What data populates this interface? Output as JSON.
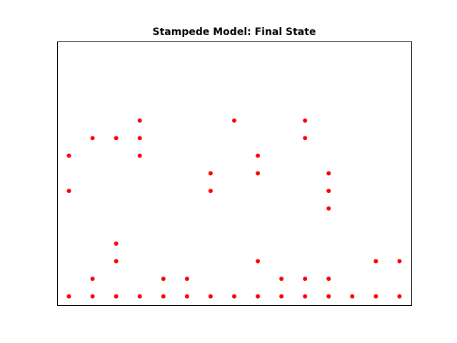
{
  "chart_data": {
    "type": "scatter",
    "title": "Stampede Model: Final State",
    "xlabel": "",
    "ylabel": "",
    "xlim": [
      -0.5,
      14.5
    ],
    "ylim": [
      -0.5,
      14.5
    ],
    "axes_visible": false,
    "grid": false,
    "marker_color": "#ff0000",
    "points": [
      {
        "x": 0,
        "y": 0
      },
      {
        "x": 1,
        "y": 0
      },
      {
        "x": 2,
        "y": 0
      },
      {
        "x": 3,
        "y": 0
      },
      {
        "x": 4,
        "y": 0
      },
      {
        "x": 5,
        "y": 0
      },
      {
        "x": 6,
        "y": 0
      },
      {
        "x": 7,
        "y": 0
      },
      {
        "x": 8,
        "y": 0
      },
      {
        "x": 9,
        "y": 0
      },
      {
        "x": 10,
        "y": 0
      },
      {
        "x": 11,
        "y": 0
      },
      {
        "x": 12,
        "y": 0
      },
      {
        "x": 13,
        "y": 0
      },
      {
        "x": 14,
        "y": 0
      },
      {
        "x": 1,
        "y": 1
      },
      {
        "x": 4,
        "y": 1
      },
      {
        "x": 5,
        "y": 1
      },
      {
        "x": 9,
        "y": 1
      },
      {
        "x": 10,
        "y": 1
      },
      {
        "x": 11,
        "y": 1
      },
      {
        "x": 2,
        "y": 2
      },
      {
        "x": 8,
        "y": 2
      },
      {
        "x": 13,
        "y": 2
      },
      {
        "x": 14,
        "y": 2
      },
      {
        "x": 2,
        "y": 3
      },
      {
        "x": 11,
        "y": 5
      },
      {
        "x": 0,
        "y": 6
      },
      {
        "x": 6,
        "y": 6
      },
      {
        "x": 11,
        "y": 6
      },
      {
        "x": 6,
        "y": 7
      },
      {
        "x": 8,
        "y": 7
      },
      {
        "x": 11,
        "y": 7
      },
      {
        "x": 0,
        "y": 8
      },
      {
        "x": 3,
        "y": 8
      },
      {
        "x": 8,
        "y": 8
      },
      {
        "x": 1,
        "y": 9
      },
      {
        "x": 2,
        "y": 9
      },
      {
        "x": 3,
        "y": 9
      },
      {
        "x": 10,
        "y": 9
      },
      {
        "x": 3,
        "y": 10
      },
      {
        "x": 7,
        "y": 10
      },
      {
        "x": 10,
        "y": 10
      }
    ]
  }
}
